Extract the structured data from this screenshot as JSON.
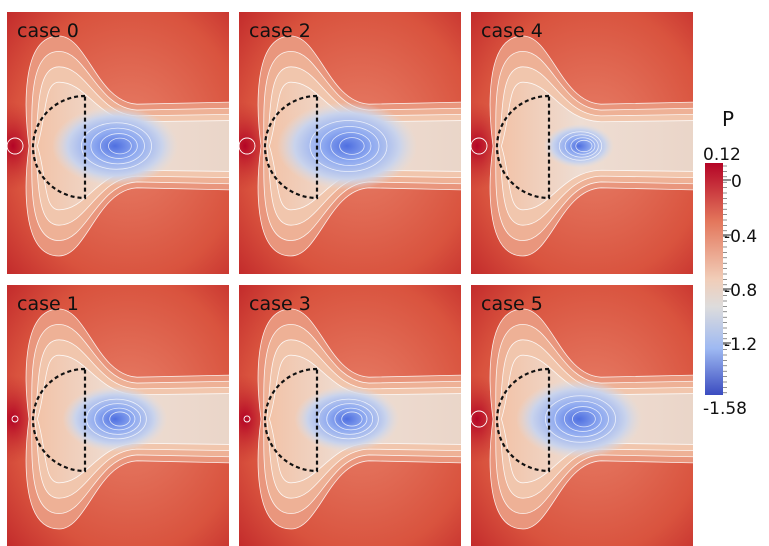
{
  "panels": [
    {
      "label": "case 0",
      "shape": "dome",
      "cavity": "strong"
    },
    {
      "label": "case 2",
      "shape": "dome",
      "cavity": "strongest"
    },
    {
      "label": "case 4",
      "shape": "dome-notched",
      "cavity": "weak"
    },
    {
      "label": "case 1",
      "shape": "dome",
      "cavity": "medium"
    },
    {
      "label": "case 3",
      "shape": "dome",
      "cavity": "medium"
    },
    {
      "label": "case 5",
      "shape": "dome",
      "cavity": "strong"
    }
  ],
  "colorbar": {
    "title": "P",
    "max_label": "0.12",
    "min_label": "-1.58",
    "ticks": [
      "0",
      "-0.4",
      "-0.8",
      "-1.2"
    ],
    "colors": {
      "high": "#b40426",
      "mid": "#dddcdc",
      "low": "#3b4cc0"
    }
  }
}
